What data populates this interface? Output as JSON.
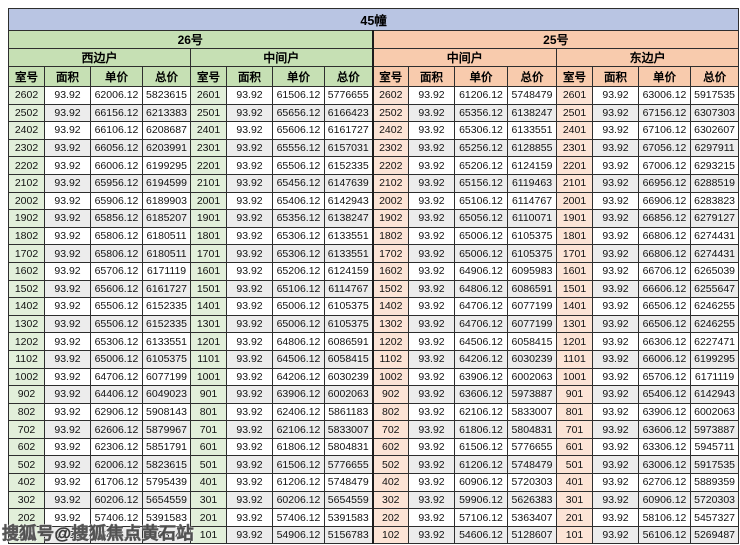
{
  "title": "45幢",
  "watermark": "搜狐号@搜狐焦点黄石站",
  "colors": {
    "title_bg": "#b9c5e3",
    "green": "#c6e0b4",
    "green_tint": "#e2efda",
    "orange": "#f8cbad",
    "orange_tint": "#fce4d6",
    "row_alt": "#ececec"
  },
  "columns": [
    "室号",
    "面积",
    "单价",
    "总价"
  ],
  "buildings": [
    {
      "name": "26号",
      "units": [
        {
          "name": "西边户",
          "rows": [
            [
              "2602",
              "93.92",
              "62006.12",
              "5823615"
            ],
            [
              "2502",
              "93.92",
              "66156.12",
              "6213383"
            ],
            [
              "2402",
              "93.92",
              "66106.12",
              "6208687"
            ],
            [
              "2302",
              "93.92",
              "66056.12",
              "6203991"
            ],
            [
              "2202",
              "93.92",
              "66006.12",
              "6199295"
            ],
            [
              "2102",
              "93.92",
              "65956.12",
              "6194599"
            ],
            [
              "2002",
              "93.92",
              "65906.12",
              "6189903"
            ],
            [
              "1902",
              "93.92",
              "65856.12",
              "6185207"
            ],
            [
              "1802",
              "93.92",
              "65806.12",
              "6180511"
            ],
            [
              "1702",
              "93.92",
              "65806.12",
              "6180511"
            ],
            [
              "1602",
              "93.92",
              "65706.12",
              "6171119"
            ],
            [
              "1502",
              "93.92",
              "65606.12",
              "6161727"
            ],
            [
              "1402",
              "93.92",
              "65506.12",
              "6152335"
            ],
            [
              "1302",
              "93.92",
              "65506.12",
              "6152335"
            ],
            [
              "1202",
              "93.92",
              "65306.12",
              "6133551"
            ],
            [
              "1102",
              "93.92",
              "65006.12",
              "6105375"
            ],
            [
              "1002",
              "93.92",
              "64706.12",
              "6077199"
            ],
            [
              "902",
              "93.92",
              "64406.12",
              "6049023"
            ],
            [
              "802",
              "93.92",
              "62906.12",
              "5908143"
            ],
            [
              "702",
              "93.92",
              "62606.12",
              "5879967"
            ],
            [
              "602",
              "93.92",
              "62306.12",
              "5851791"
            ],
            [
              "502",
              "93.92",
              "62006.12",
              "5823615"
            ],
            [
              "402",
              "93.92",
              "61706.12",
              "5795439"
            ],
            [
              "302",
              "93.92",
              "60206.12",
              "5654559"
            ],
            [
              "202",
              "93.92",
              "57406.12",
              "5391583"
            ],
            [
              "102",
              "93.92",
              "55406.12",
              "5203743"
            ]
          ]
        },
        {
          "name": "中间户",
          "rows": [
            [
              "2601",
              "93.92",
              "61506.12",
              "5776655"
            ],
            [
              "2501",
              "93.92",
              "65656.12",
              "6166423"
            ],
            [
              "2401",
              "93.92",
              "65606.12",
              "6161727"
            ],
            [
              "2301",
              "93.92",
              "65556.12",
              "6157031"
            ],
            [
              "2201",
              "93.92",
              "65506.12",
              "6152335"
            ],
            [
              "2101",
              "93.92",
              "65456.12",
              "6147639"
            ],
            [
              "2001",
              "93.92",
              "65406.12",
              "6142943"
            ],
            [
              "1901",
              "93.92",
              "65356.12",
              "6138247"
            ],
            [
              "1801",
              "93.92",
              "65306.12",
              "6133551"
            ],
            [
              "1701",
              "93.92",
              "65306.12",
              "6133551"
            ],
            [
              "1601",
              "93.92",
              "65206.12",
              "6124159"
            ],
            [
              "1501",
              "93.92",
              "65106.12",
              "6114767"
            ],
            [
              "1401",
              "93.92",
              "65006.12",
              "6105375"
            ],
            [
              "1301",
              "93.92",
              "65006.12",
              "6105375"
            ],
            [
              "1201",
              "93.92",
              "64806.12",
              "6086591"
            ],
            [
              "1101",
              "93.92",
              "64506.12",
              "6058415"
            ],
            [
              "1001",
              "93.92",
              "64206.12",
              "6030239"
            ],
            [
              "901",
              "93.92",
              "63906.12",
              "6002063"
            ],
            [
              "801",
              "93.92",
              "62406.12",
              "5861183"
            ],
            [
              "701",
              "93.92",
              "62106.12",
              "5833007"
            ],
            [
              "601",
              "93.92",
              "61806.12",
              "5804831"
            ],
            [
              "501",
              "93.92",
              "61506.12",
              "5776655"
            ],
            [
              "401",
              "93.92",
              "61206.12",
              "5748479"
            ],
            [
              "301",
              "93.92",
              "60206.12",
              "5654559"
            ],
            [
              "201",
              "93.92",
              "57406.12",
              "5391583"
            ],
            [
              "101",
              "93.92",
              "54906.12",
              "5156783"
            ]
          ]
        }
      ]
    },
    {
      "name": "25号",
      "units": [
        {
          "name": "中间户",
          "rows": [
            [
              "2602",
              "93.92",
              "61206.12",
              "5748479"
            ],
            [
              "2502",
              "93.92",
              "65356.12",
              "6138247"
            ],
            [
              "2402",
              "93.92",
              "65306.12",
              "6133551"
            ],
            [
              "2302",
              "93.92",
              "65256.12",
              "6128855"
            ],
            [
              "2202",
              "93.92",
              "65206.12",
              "6124159"
            ],
            [
              "2102",
              "93.92",
              "65156.12",
              "6119463"
            ],
            [
              "2002",
              "93.92",
              "65106.12",
              "6114767"
            ],
            [
              "1902",
              "93.92",
              "65056.12",
              "6110071"
            ],
            [
              "1802",
              "93.92",
              "65006.12",
              "6105375"
            ],
            [
              "1702",
              "93.92",
              "65006.12",
              "6105375"
            ],
            [
              "1602",
              "93.92",
              "64906.12",
              "6095983"
            ],
            [
              "1502",
              "93.92",
              "64806.12",
              "6086591"
            ],
            [
              "1402",
              "93.92",
              "64706.12",
              "6077199"
            ],
            [
              "1302",
              "93.92",
              "64706.12",
              "6077199"
            ],
            [
              "1202",
              "93.92",
              "64506.12",
              "6058415"
            ],
            [
              "1102",
              "93.92",
              "64206.12",
              "6030239"
            ],
            [
              "1002",
              "93.92",
              "63906.12",
              "6002063"
            ],
            [
              "902",
              "93.92",
              "63606.12",
              "5973887"
            ],
            [
              "802",
              "93.92",
              "62106.12",
              "5833007"
            ],
            [
              "702",
              "93.92",
              "61806.12",
              "5804831"
            ],
            [
              "602",
              "93.92",
              "61506.12",
              "5776655"
            ],
            [
              "502",
              "93.92",
              "61206.12",
              "5748479"
            ],
            [
              "402",
              "93.92",
              "60906.12",
              "5720303"
            ],
            [
              "302",
              "93.92",
              "59906.12",
              "5626383"
            ],
            [
              "202",
              "93.92",
              "57106.12",
              "5363407"
            ],
            [
              "102",
              "93.92",
              "54606.12",
              "5128607"
            ]
          ]
        },
        {
          "name": "东边户",
          "rows": [
            [
              "2601",
              "93.92",
              "63006.12",
              "5917535"
            ],
            [
              "2501",
              "93.92",
              "67156.12",
              "6307303"
            ],
            [
              "2401",
              "93.92",
              "67106.12",
              "6302607"
            ],
            [
              "2301",
              "93.92",
              "67056.12",
              "6297911"
            ],
            [
              "2201",
              "93.92",
              "67006.12",
              "6293215"
            ],
            [
              "2101",
              "93.92",
              "66956.12",
              "6288519"
            ],
            [
              "2001",
              "93.92",
              "66906.12",
              "6283823"
            ],
            [
              "1901",
              "93.92",
              "66856.12",
              "6279127"
            ],
            [
              "1801",
              "93.92",
              "66806.12",
              "6274431"
            ],
            [
              "1701",
              "93.92",
              "66806.12",
              "6274431"
            ],
            [
              "1601",
              "93.92",
              "66706.12",
              "6265039"
            ],
            [
              "1501",
              "93.92",
              "66606.12",
              "6255647"
            ],
            [
              "1401",
              "93.92",
              "66506.12",
              "6246255"
            ],
            [
              "1301",
              "93.92",
              "66506.12",
              "6246255"
            ],
            [
              "1201",
              "93.92",
              "66306.12",
              "6227471"
            ],
            [
              "1101",
              "93.92",
              "66006.12",
              "6199295"
            ],
            [
              "1001",
              "93.92",
              "65706.12",
              "6171119"
            ],
            [
              "901",
              "93.92",
              "65406.12",
              "6142943"
            ],
            [
              "801",
              "93.92",
              "63906.12",
              "6002063"
            ],
            [
              "701",
              "93.92",
              "63606.12",
              "5973887"
            ],
            [
              "601",
              "93.92",
              "63306.12",
              "5945711"
            ],
            [
              "501",
              "93.92",
              "63006.12",
              "5917535"
            ],
            [
              "401",
              "93.92",
              "62706.12",
              "5889359"
            ],
            [
              "301",
              "93.92",
              "60906.12",
              "5720303"
            ],
            [
              "201",
              "93.92",
              "58106.12",
              "5457327"
            ],
            [
              "101",
              "93.92",
              "56106.12",
              "5269487"
            ]
          ]
        }
      ]
    }
  ]
}
